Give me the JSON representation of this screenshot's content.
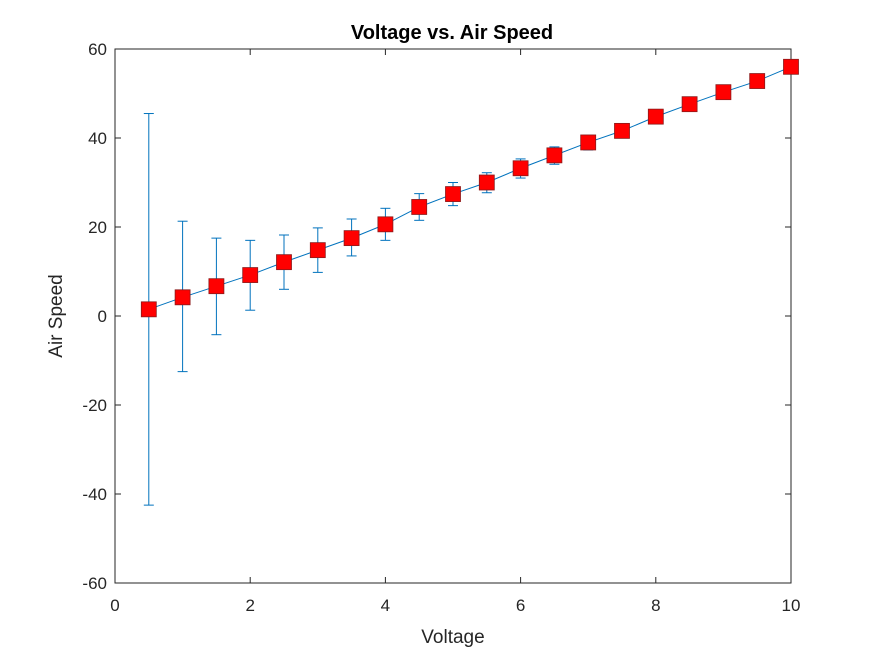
{
  "chart_data": {
    "type": "line",
    "title": "Voltage vs. Air Speed",
    "xlabel": "Voltage",
    "ylabel": "Air Speed",
    "xlim": [
      0,
      10
    ],
    "ylim": [
      -60,
      60
    ],
    "xticks": [
      0,
      2,
      4,
      6,
      8,
      10
    ],
    "yticks": [
      -60,
      -40,
      -20,
      0,
      20,
      40,
      60
    ],
    "grid": false,
    "legend": "none",
    "colors": {
      "line": "#0072BD",
      "errorbar": "#0072BD",
      "marker_fill": "#FF0000",
      "marker_edge": "#8B1A1A",
      "axes": "#262626"
    },
    "marker": "square",
    "series": [
      {
        "x": [
          0.5,
          1.0,
          1.5,
          2.0,
          2.5,
          3.0,
          3.5,
          4.0,
          4.5,
          5.0,
          5.5,
          6.0,
          6.5,
          7.0,
          7.5,
          8.0,
          8.5,
          9.0,
          9.5,
          10.0
        ],
        "y": [
          1.5,
          4.2,
          6.7,
          9.2,
          12.1,
          14.8,
          17.5,
          20.6,
          24.5,
          27.4,
          30.0,
          33.2,
          36.1,
          39.0,
          41.6,
          44.8,
          47.6,
          50.3,
          52.8,
          56.0
        ],
        "err_low": [
          -42.5,
          -12.5,
          -4.2,
          1.3,
          6.0,
          9.8,
          13.5,
          17.0,
          21.5,
          24.8,
          27.7,
          31.0,
          34.1,
          37.3,
          40.2,
          43.4,
          46.4,
          49.2,
          51.8,
          55.0
        ],
        "err_high": [
          45.5,
          21.3,
          17.5,
          17.0,
          18.2,
          19.8,
          21.8,
          24.2,
          27.5,
          30.0,
          32.2,
          35.3,
          38.0,
          40.6,
          43.0,
          46.2,
          48.8,
          51.4,
          53.8,
          57.0
        ]
      }
    ]
  }
}
